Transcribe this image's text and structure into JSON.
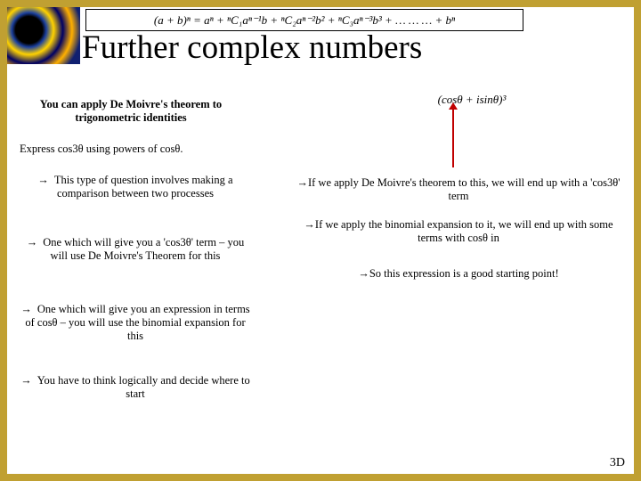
{
  "colors": {
    "border": "#c0a032",
    "arrow": "#c00000",
    "background": "#ffffff",
    "text": "#000000"
  },
  "formula_top": "(a + b)ⁿ = aⁿ + ⁿC₁aⁿ⁻¹b + ⁿC₂aⁿ⁻²b² + ⁿC₃aⁿ⁻³b³ + … … … + bⁿ",
  "title": "Further complex numbers",
  "subtitle": "You can apply De Moivre's theorem to trigonometric identities",
  "express": "Express cos3θ using powers of cosθ.",
  "left_bullets": [
    "This type of question involves making a comparison between two processes",
    "One which will give you a 'cos3θ' term – you will use De Moivre's Theorem for this",
    "One which will give you an expression in terms of cosθ – you will use the binomial expansion for this",
    "You have to think logically and decide where to start"
  ],
  "right_formula": "(cosθ + isinθ)³",
  "right_bullets": [
    "If we apply De Moivre's theorem to this, we will end up with a 'cos3θ' term",
    "If we apply the binomial expansion to it, we will end up with some terms with cosθ in",
    "So this expression is a good starting point!"
  ],
  "arrow_glyph": "→",
  "corner": "3D"
}
